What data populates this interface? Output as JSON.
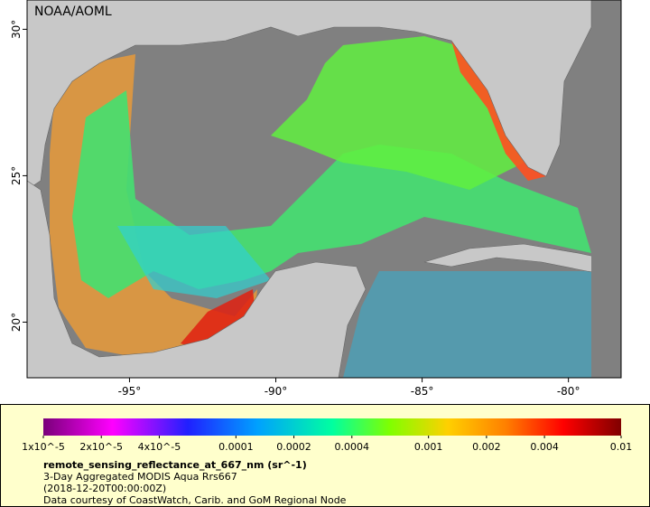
{
  "map": {
    "label": "NOAA/AOML",
    "lonlim": [
      -98.5,
      -78.2
    ],
    "latlim": [
      18.1,
      31
    ],
    "lon_ticks": [
      {
        "value": -95,
        "label": "-95°"
      },
      {
        "value": -90,
        "label": "-90°"
      },
      {
        "value": -85,
        "label": "-85°"
      },
      {
        "value": -80,
        "label": "-80°"
      }
    ],
    "lat_ticks": [
      {
        "value": 30,
        "label": "30°"
      },
      {
        "value": 25,
        "label": "25°"
      },
      {
        "value": 20,
        "label": "20°"
      }
    ]
  },
  "colorbar": {
    "scale": "log",
    "range": [
      1e-05,
      0.01
    ],
    "ticks": [
      {
        "value": 1e-05,
        "label": "1x10^-5"
      },
      {
        "value": 2e-05,
        "label": "2x10^-5"
      },
      {
        "value": 4e-05,
        "label": "4x10^-5"
      },
      0.0001,
      0.0002,
      0.0004,
      0.001,
      0.002,
      0.004,
      0.01
    ]
  },
  "legend": {
    "variable": "remote_sensing_reflectance_at_667_nm (sr^-1)",
    "description": "3-Day Aggregated MODIS Aqua Rrs667",
    "time": "(2018-12-20T00:00:00Z)",
    "credit": "Data courtesy of CoastWatch, Carib. and GoM Regional Node"
  }
}
